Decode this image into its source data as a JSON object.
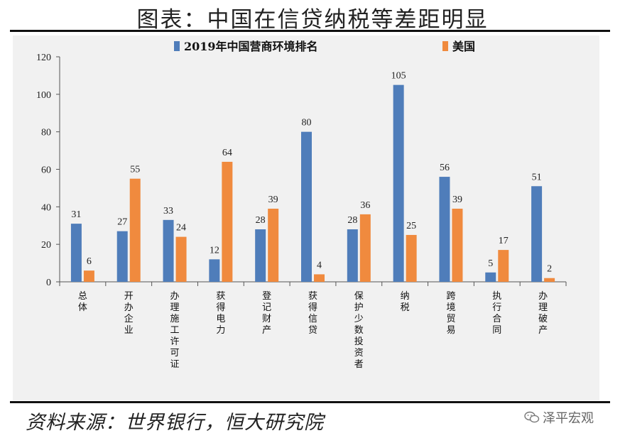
{
  "title": "图表：中国在信贷纳税等差距明显",
  "source": "资料来源：世界银行，恒大研究院",
  "watermark": "泽平宏观",
  "colors": {
    "china": "#4F7DBA",
    "usa": "#F08A3E",
    "background": "#F1F1F1"
  },
  "chart_data": {
    "type": "bar",
    "categories": [
      "总体",
      "开办企业",
      "办理施工许可证",
      "获得电力",
      "登记财产",
      "获得信贷",
      "保护少数投资者",
      "纳税",
      "跨境贸易",
      "执行合同",
      "办理破产"
    ],
    "series": [
      {
        "name": "2019年中国营商环境排名",
        "values": [
          31,
          27,
          33,
          12,
          28,
          80,
          28,
          105,
          56,
          5,
          51
        ]
      },
      {
        "name": "美国",
        "values": [
          6,
          55,
          24,
          64,
          39,
          4,
          36,
          25,
          39,
          17,
          2
        ]
      }
    ],
    "ylim": [
      0,
      120
    ],
    "yticks": [
      0,
      20,
      40,
      60,
      80,
      100,
      120
    ],
    "legend_position": "top",
    "grid": false
  }
}
